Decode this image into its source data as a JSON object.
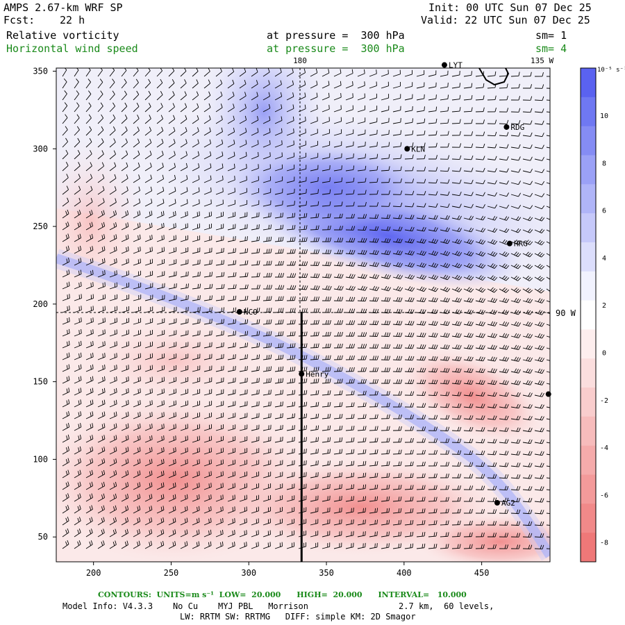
{
  "header": {
    "model": "AMPS 2.67-km WRF SP",
    "init": "Init: 00 UTC Sun 07 Dec 25",
    "fcst_label": "Fcst:",
    "fcst_value": "22 h",
    "valid": "Valid: 22 UTC Sun 07 Dec 25",
    "field1_name": "Relative vorticity",
    "field1_level": "at pressure =  300 hPa",
    "field1_sm": "sm= 1",
    "field2_name": "Horizontal wind speed",
    "field2_level": "at pressure =  300 hPa",
    "field2_sm": "sm= 4"
  },
  "map": {
    "meridian_180": "180",
    "meridian_135w": "135 W",
    "meridian_90w": "90 W",
    "x_ticks": [
      "200",
      "250",
      "300",
      "350",
      "400",
      "450"
    ],
    "y_ticks": [
      "50",
      "100",
      "150",
      "200",
      "250",
      "300",
      "350"
    ],
    "stations": [
      {
        "name": "LYT",
        "x": 426,
        "y": 354
      },
      {
        "name": "RDG",
        "x": 466,
        "y": 314
      },
      {
        "name": "KLN",
        "x": 402,
        "y": 300
      },
      {
        "name": "HRG",
        "x": 468,
        "y": 239
      },
      {
        "name": "NCO",
        "x": 294,
        "y": 195
      },
      {
        "name": "Henry",
        "x": 334,
        "y": 155
      },
      {
        "name": "",
        "x": 493,
        "y": 142
      },
      {
        "name": "AG2",
        "x": 460,
        "y": 72
      }
    ],
    "cross_section": {
      "x": 334,
      "y_start": 34,
      "y_end": 195
    }
  },
  "colorbar": {
    "units": "10⁻⁵ s⁻¹",
    "labels": [
      "10",
      "8",
      "6",
      "4",
      "2",
      "0",
      "-2",
      "-4",
      "-6",
      "-8"
    ],
    "colors": [
      "#5a62f0",
      "#6f78f2",
      "#858cf4",
      "#9ba1f6",
      "#b0b5f8",
      "#c6c9fa",
      "#dcdefc",
      "#f1f2fe",
      "#ffffff",
      "#fdeeee",
      "#fbdede",
      "#f9cdcd",
      "#f7bcbc",
      "#f5abab",
      "#f39a9a",
      "#f18989",
      "#ef7878"
    ]
  },
  "footer": {
    "contours": "CONTOURS:  UNITS=m s⁻¹  LOW=  20.000      HIGH=  20.000      INTERVAL=   10.000",
    "model_info": "Model Info: V4.3.3    No Cu    MYJ PBL   Morrison                  2.7 km,  60 levels,",
    "schemes": "LW: RRTM SW: RRTMG   DIFF: simple KM: 2D Smagor"
  }
}
